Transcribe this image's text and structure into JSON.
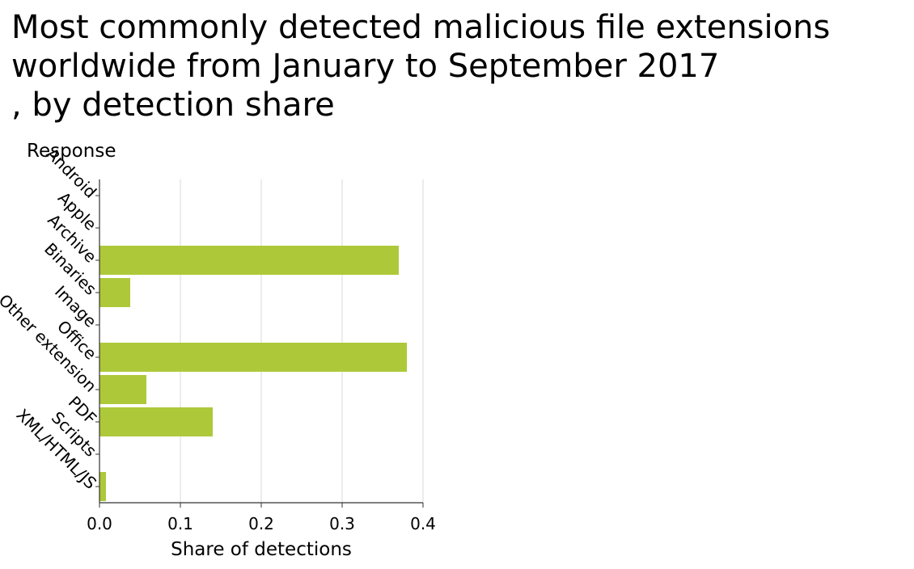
{
  "chart_data": {
    "type": "bar",
    "orientation": "horizontal",
    "title_lines": [
      "Most commonly detected malicious file extensions",
      "worldwide from January to September 2017",
      ", by detection share"
    ],
    "xlabel": "Share of detections",
    "ylabel": "Response",
    "categories": [
      "Android",
      "Apple",
      "Archive",
      "Binaries",
      "Image",
      "Office",
      "Other extension",
      "PDF",
      "Scripts",
      "XML/HTML/JS"
    ],
    "values": [
      0,
      0,
      0.37,
      0.038,
      0,
      0.38,
      0.058,
      0.14,
      0,
      0.008
    ],
    "xlim": [
      0,
      0.4
    ],
    "xticks": [
      0,
      0.1,
      0.2,
      0.3,
      0.4
    ],
    "xtick_labels": [
      "0.0",
      "0.1",
      "0.2",
      "0.3",
      "0.4"
    ],
    "grid": true,
    "bar_color": "#adc93a"
  }
}
